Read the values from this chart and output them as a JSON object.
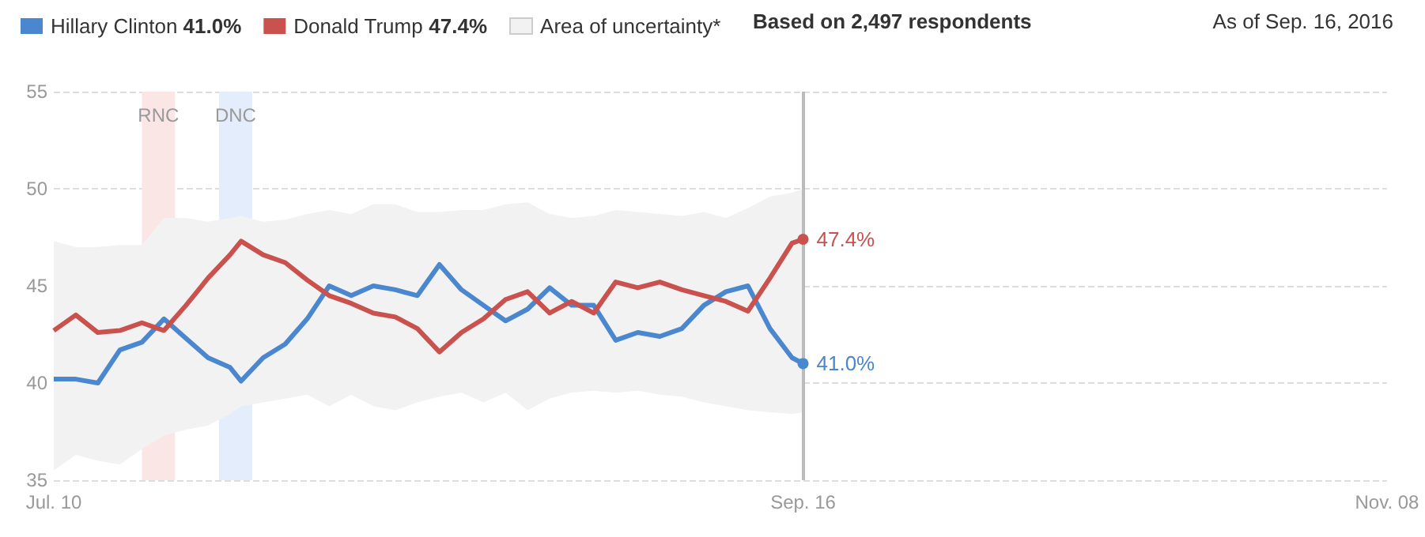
{
  "chart_data": {
    "type": "line",
    "x": [
      "2016-07-10",
      "2016-07-12",
      "2016-07-14",
      "2016-07-16",
      "2016-07-18",
      "2016-07-20",
      "2016-07-22",
      "2016-07-24",
      "2016-07-26",
      "2016-07-27",
      "2016-07-29",
      "2016-07-31",
      "2016-08-02",
      "2016-08-04",
      "2016-08-06",
      "2016-08-08",
      "2016-08-10",
      "2016-08-12",
      "2016-08-14",
      "2016-08-16",
      "2016-08-18",
      "2016-08-20",
      "2016-08-22",
      "2016-08-24",
      "2016-08-26",
      "2016-08-28",
      "2016-08-30",
      "2016-09-01",
      "2016-09-03",
      "2016-09-05",
      "2016-09-07",
      "2016-09-09",
      "2016-09-11",
      "2016-09-13",
      "2016-09-15",
      "2016-09-16"
    ],
    "series": [
      {
        "name": "Area of uncertainty*",
        "color": "#f2f2f2",
        "values": [
          null,
          null,
          null,
          null,
          null,
          null,
          null,
          null,
          null,
          null,
          null,
          null,
          null,
          null,
          null,
          null,
          null,
          null,
          null,
          null,
          null,
          null,
          null,
          null,
          null,
          null,
          null,
          null,
          null,
          null,
          null,
          null,
          null,
          null,
          null,
          null
        ],
        "lower": [
          35.5,
          36.3,
          36.0,
          35.8,
          36.6,
          37.3,
          37.6,
          37.8,
          38.4,
          38.8,
          39.0,
          39.2,
          39.4,
          38.8,
          39.4,
          38.8,
          38.6,
          39.0,
          39.3,
          39.5,
          39.0,
          39.5,
          38.6,
          39.2,
          39.5,
          39.6,
          39.5,
          39.6,
          39.4,
          39.3,
          39.0,
          38.8,
          38.6,
          38.5,
          38.4,
          38.5
        ],
        "upper": [
          47.3,
          47.0,
          47.0,
          47.1,
          47.1,
          48.5,
          48.5,
          48.3,
          48.5,
          48.6,
          48.3,
          48.4,
          48.7,
          48.9,
          48.7,
          49.2,
          49.2,
          48.8,
          48.8,
          48.9,
          48.9,
          49.2,
          49.3,
          48.7,
          48.5,
          48.6,
          48.9,
          48.8,
          48.7,
          48.6,
          48.8,
          48.5,
          49.0,
          49.6,
          49.8,
          50.0
        ]
      },
      {
        "name": "Hillary Clinton 41.0%",
        "color": "#4a87cf",
        "values": [
          40.2,
          40.2,
          40.0,
          41.7,
          42.1,
          43.3,
          42.3,
          41.3,
          40.8,
          40.1,
          41.3,
          42.0,
          43.3,
          45.0,
          44.5,
          45.0,
          44.8,
          44.5,
          46.1,
          44.8,
          44.0,
          43.2,
          43.8,
          44.9,
          44.0,
          44.0,
          42.2,
          42.6,
          42.4,
          42.8,
          44.0,
          44.7,
          45.0,
          42.8,
          41.3,
          41.0
        ],
        "value_labels": [
          null,
          null,
          null,
          null,
          null,
          null,
          null,
          null,
          null,
          null,
          null,
          null,
          null,
          null,
          null,
          null,
          null,
          null,
          null,
          null,
          null,
          null,
          null,
          null,
          null,
          null,
          null,
          null,
          null,
          null,
          null,
          null,
          null,
          null,
          null,
          "41.0%"
        ]
      },
      {
        "name": "Donald Trump 47.4%",
        "color": "#c9524e",
        "values": [
          42.7,
          43.5,
          42.6,
          42.7,
          43.1,
          42.7,
          44.0,
          45.4,
          46.6,
          47.3,
          46.6,
          46.2,
          45.3,
          44.5,
          44.1,
          43.6,
          43.4,
          42.8,
          41.6,
          42.6,
          43.3,
          44.3,
          44.7,
          43.6,
          44.2,
          43.6,
          45.2,
          44.9,
          45.2,
          44.8,
          44.5,
          44.2,
          43.7,
          45.4,
          47.2,
          47.4
        ],
        "value_labels": [
          null,
          null,
          null,
          null,
          null,
          null,
          null,
          null,
          null,
          null,
          null,
          null,
          null,
          null,
          null,
          null,
          null,
          null,
          null,
          null,
          null,
          null,
          null,
          null,
          null,
          null,
          null,
          null,
          null,
          null,
          null,
          null,
          null,
          null,
          null,
          "47.4%"
        ]
      }
    ],
    "xlim": [
      "2016-07-10",
      "2016-11-08"
    ],
    "xticks": [
      {
        "value": "2016-07-10",
        "label": "Jul. 10"
      },
      {
        "value": "2016-09-16",
        "label": "Sep. 16"
      },
      {
        "value": "2016-11-08",
        "label": "Nov. 08"
      }
    ],
    "ylim": [
      35,
      55
    ],
    "yticks": [
      35,
      40,
      45,
      50,
      55
    ],
    "grid": "y",
    "legend": "top left",
    "bands": [
      {
        "axis": "x",
        "from": "2016-07-18",
        "to": "2016-07-21",
        "label": "RNC",
        "color": "#fbe6e6"
      },
      {
        "axis": "x",
        "from": "2016-07-25",
        "to": "2016-07-28",
        "label": "DNC",
        "color": "#e4edfb"
      }
    ],
    "ref_lines": [
      {
        "axis": "x",
        "value": "2016-09-16",
        "color": "#bbbbbb"
      }
    ],
    "annotations": [
      "Based on 2,497 respondents",
      "As of Sep. 16, 2016"
    ]
  }
}
